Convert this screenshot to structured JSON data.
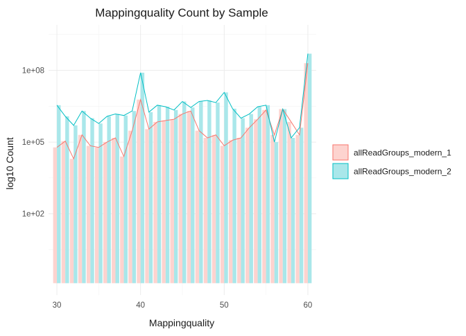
{
  "chart_data": {
    "type": "bar",
    "title": "Mappingquality Count by Sample",
    "xlabel": "Mappingquality",
    "ylabel": "log10 Count",
    "y_scale": "log10",
    "x_ticks": [
      30,
      40,
      50,
      60
    ],
    "y_ticks": [
      {
        "value": 100,
        "label": "1e+02"
      },
      {
        "value": 100000,
        "label": "1e+05"
      },
      {
        "value": 100000000,
        "label": "1e+08"
      }
    ],
    "xlim": [
      29,
      61
    ],
    "ylim_log10": [
      -1.4,
      9.9
    ],
    "bar_baseline_log10": -0.9,
    "grid": true,
    "legend_position": "right",
    "x": [
      30,
      31,
      32,
      33,
      34,
      35,
      36,
      37,
      38,
      39,
      40,
      41,
      42,
      43,
      44,
      45,
      46,
      47,
      48,
      49,
      50,
      51,
      52,
      53,
      54,
      55,
      56,
      57,
      58,
      59,
      60
    ],
    "series": [
      {
        "name": "allReadGroups_modern_1",
        "color": "#F8766D",
        "fill": "#FDD3CF",
        "values": [
          60000,
          110000,
          20000,
          200000,
          70000,
          60000,
          100000,
          150000,
          25000,
          300000,
          6000000,
          350000,
          700000,
          800000,
          900000,
          1500000,
          2000000,
          300000,
          150000,
          200000,
          70000,
          120000,
          150000,
          400000,
          900000,
          2200000,
          200000,
          2400000,
          700000,
          200000,
          200000000
        ]
      },
      {
        "name": "allReadGroups_modern_2",
        "color": "#00BFC4",
        "fill": "#A9E7EA",
        "values": [
          3500000,
          1200000,
          500000,
          2000000,
          1000000,
          600000,
          1200000,
          1500000,
          1300000,
          2000000,
          80000000,
          1800000,
          3500000,
          3000000,
          2200000,
          5000000,
          2800000,
          5000000,
          5500000,
          4500000,
          12000000,
          2500000,
          1000000,
          1500000,
          3000000,
          3500000,
          100000,
          2400000,
          150000,
          400000,
          500000000
        ]
      }
    ]
  }
}
